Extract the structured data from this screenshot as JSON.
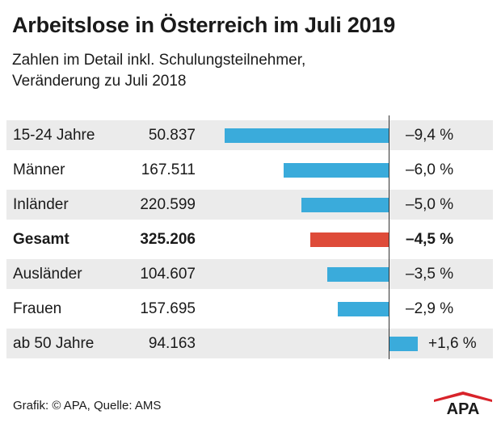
{
  "title": "Arbeitslose in Österreich im Juli 2019",
  "subtitle": {
    "line1": "Zahlen im Detail inkl. Schulungsteilnehmer,",
    "line2": "Veränderung zu Juli 2018"
  },
  "chart_data": {
    "type": "bar",
    "orientation": "horizontal",
    "title": "Arbeitslose in Österreich im Juli 2019",
    "value_unit": "%",
    "categories": [
      "15-24 Jahre",
      "Männer",
      "Inländer",
      "Gesamt",
      "Ausländer",
      "Frauen",
      "ab 50 Jahre"
    ],
    "counts": [
      "50.837",
      "167.511",
      "220.599",
      "325.206",
      "104.607",
      "157.695",
      "94.163"
    ],
    "values": [
      -9.4,
      -6.0,
      -5.0,
      -4.5,
      -3.5,
      -2.9,
      1.6
    ],
    "value_labels": [
      "–9,4 %",
      "–6,0 %",
      "–5,0 %",
      "–4,5 %",
      "–3,5 %",
      "–2,9 %",
      "+1,6 %"
    ],
    "highlight": [
      "",
      "",
      "",
      "total",
      "",
      "",
      ""
    ],
    "xlim": [
      -9.4,
      1.6
    ]
  },
  "colors": {
    "bar": "#3aabdb",
    "highlight": "#de4b39",
    "stripe": "#ebebeb",
    "logo": "#d8232a"
  },
  "footer": {
    "source": "Grafik: © APA, Quelle: AMS",
    "logo_text": "APA"
  }
}
